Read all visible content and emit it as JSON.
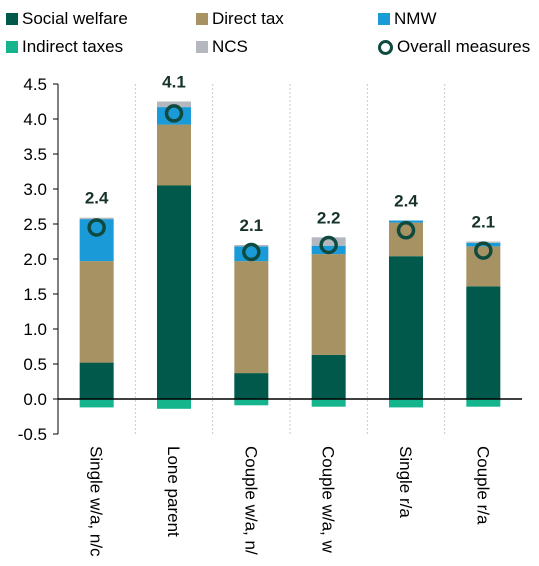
{
  "legend": {
    "items": [
      {
        "label": "Social welfare",
        "color": "#00594a",
        "kind": "swatch"
      },
      {
        "label": "Direct tax",
        "color": "#a69262",
        "kind": "swatch"
      },
      {
        "label": "NMW",
        "color": "#1a9ad6",
        "kind": "swatch"
      },
      {
        "label": "Indirect taxes",
        "color": "#14b48c",
        "kind": "swatch"
      },
      {
        "label": "NCS",
        "color": "#b4b8be",
        "kind": "swatch"
      },
      {
        "label": "Overall measures",
        "color": "#0f4a3f",
        "kind": "ring"
      }
    ]
  },
  "chart_data": {
    "type": "bar",
    "stacked": true,
    "categories": [
      "Single w/a, n/c",
      "Lone parent",
      "Couple w/a, n/",
      "Couple w/a, w",
      "Single r/a",
      "Couple r/a"
    ],
    "series": [
      {
        "name": "Social welfare",
        "color": "#00594a",
        "values": [
          0.52,
          3.05,
          0.37,
          0.63,
          2.04,
          1.61
        ]
      },
      {
        "name": "Direct tax",
        "color": "#a69262",
        "values": [
          1.45,
          0.87,
          1.6,
          1.44,
          0.48,
          0.57
        ]
      },
      {
        "name": "NMW",
        "color": "#1a9ad6",
        "values": [
          0.6,
          0.25,
          0.21,
          0.12,
          0.03,
          0.05
        ]
      },
      {
        "name": "NCS",
        "color": "#b4b8be",
        "values": [
          0.02,
          0.08,
          0.02,
          0.12,
          0.0,
          0.02
        ]
      },
      {
        "name": "Indirect taxes",
        "color": "#14b48c",
        "values": [
          -0.12,
          -0.14,
          -0.09,
          -0.11,
          -0.12,
          -0.11
        ]
      }
    ],
    "overall": {
      "name": "Overall measures",
      "values": [
        2.45,
        4.08,
        2.1,
        2.2,
        2.41,
        2.12
      ]
    },
    "data_labels": [
      "2.4",
      "4.1",
      "2.1",
      "2.2",
      "2.4",
      "2.1"
    ],
    "yticks": [
      "4.5",
      "4.0",
      "3.5",
      "3.0",
      "2.5",
      "2.0",
      "1.5",
      "1.0",
      "0.5",
      "0.0",
      "-0.5"
    ],
    "ylim": [
      -0.5,
      4.5
    ],
    "gridlines": "vertical-dotted",
    "legend_position": "top"
  }
}
